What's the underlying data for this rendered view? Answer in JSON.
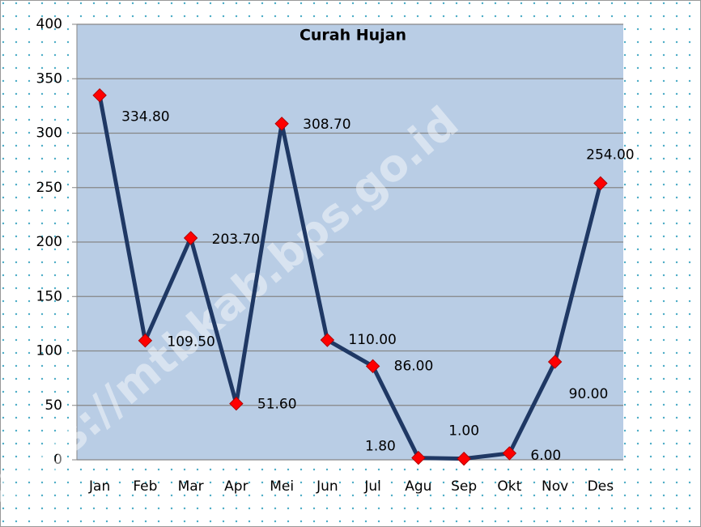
{
  "chart_data": {
    "type": "line",
    "title": "Curah Hujan",
    "categories": [
      "Jan",
      "Feb",
      "Mar",
      "Apr",
      "Mei",
      "Jun",
      "Jul",
      "Agu",
      "Sep",
      "Okt",
      "Nov",
      "Des"
    ],
    "series": [
      {
        "name": "Curah Hujan",
        "color": "#1f3864",
        "marker_color": "#ff0000",
        "values": [
          334.8,
          109.5,
          203.7,
          51.6,
          308.7,
          110,
          86,
          1.8,
          1,
          6,
          90,
          254
        ],
        "value_labels": [
          "334.80",
          "109.50",
          "203.70",
          "51.60",
          "308.70",
          "110.00",
          "86.00",
          "1.80",
          "1.00",
          "6.00",
          "90.00",
          "254.00"
        ]
      }
    ],
    "ylim": [
      0,
      400
    ],
    "yticks": [
      0,
      50,
      100,
      150,
      200,
      250,
      300,
      350,
      400
    ],
    "grid": true,
    "watermark": "https://mtbkab.bps.go.id"
  }
}
